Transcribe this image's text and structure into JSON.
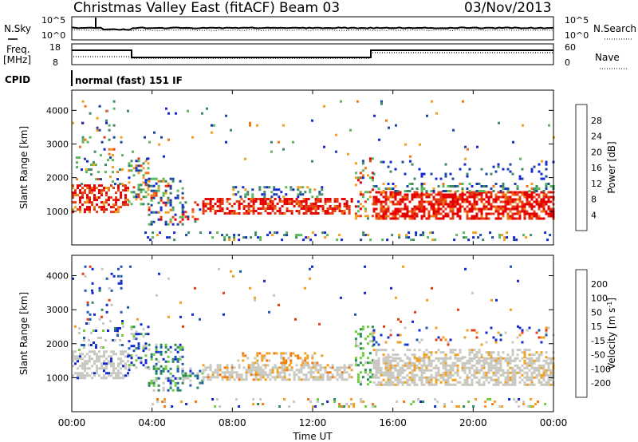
{
  "header": {
    "station": "Christmas Valley East (fitACF)",
    "beam": "Beam 03",
    "date": "03/Nov/2013"
  },
  "noise_panel": {
    "left_label": "N.Sky",
    "left_tick_top": "10^5",
    "left_tick_bottom": "10^0",
    "right_tick_top": "10^5",
    "right_tick_bottom": "10^0",
    "right_label": "N.Search"
  },
  "freq_panel": {
    "left_label_line1": "Freq.",
    "left_label_line2": "[MHz]",
    "left_tick_top": "18",
    "left_tick_bottom": "8",
    "right_tick_top": "60",
    "right_tick_bottom": "0",
    "right_label": "Nave"
  },
  "cpid": {
    "label": "CPID",
    "value": "normal (fast) 151 IF"
  },
  "chart_data": [
    {
      "type": "heatmap",
      "ylabel": "Slant Range [km]",
      "yticks": [
        "1000",
        "2000",
        "3000",
        "4000"
      ],
      "ylim": [
        0,
        4600
      ],
      "colorbar_label": "Power [dB]",
      "colorbar_ticks": [
        "4",
        "8",
        "12",
        "16",
        "20",
        "24",
        "28"
      ],
      "colorbar_range": [
        0,
        32
      ],
      "colors": [
        "#1428d2",
        "#1e46a0",
        "#3f8a66",
        "#5ab85a",
        "#f0a01e",
        "#f07814",
        "#e63c14",
        "#e60000"
      ]
    },
    {
      "type": "heatmap",
      "ylabel": "Slant Range [km]",
      "yticks": [
        "1000",
        "2000",
        "3000",
        "4000"
      ],
      "ylim": [
        0,
        4600
      ],
      "colorbar_label": "Velocity [m s^-1]",
      "colorbar_ticks": [
        "200",
        "100",
        "50",
        "15",
        "-15",
        "-50",
        "-100",
        "-200"
      ],
      "colorbar_range": [
        -250,
        250
      ],
      "colors": [
        "#1428d2",
        "#1e5ab4",
        "#2a8c5a",
        "#6ecc3c",
        "#c8c8c0",
        "#f0a01e",
        "#f07814",
        "#e63c14",
        "#e60000"
      ]
    }
  ],
  "time_axis": {
    "xlabel": "Time UT",
    "xticks": [
      "00:00",
      "04:00",
      "08:00",
      "12:00",
      "16:00",
      "20:00",
      "00:00"
    ]
  }
}
